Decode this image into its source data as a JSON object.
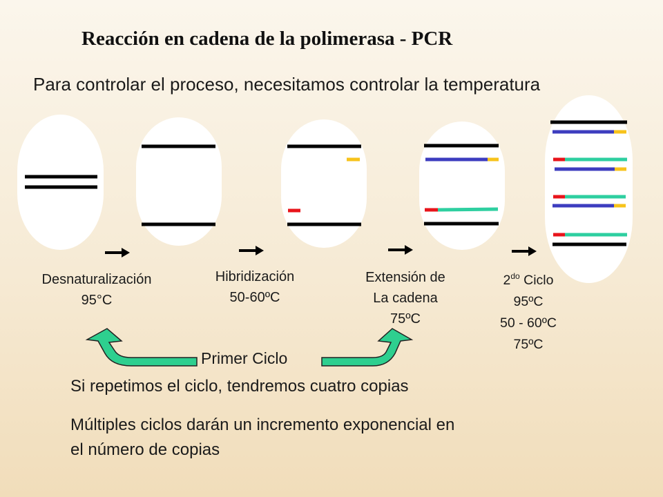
{
  "title": "Reacción en cadena de la polimerasa - PCR",
  "subtitle": "Para controlar el proceso, necesitamos controlar la temperatura",
  "steps": [
    {
      "name": "Desnaturalización",
      "temp": "95°C"
    },
    {
      "name": "Hibridización",
      "temp": "50-60ºC"
    },
    {
      "name_line1": "Extensión de",
      "name_line2": "La cadena",
      "temp": "75ºC"
    }
  ],
  "second_cycle": {
    "number": "2",
    "superscript": "do",
    "label": "Ciclo",
    "temps": [
      "95ºC",
      "50 - 60ºC",
      "75ºC"
    ]
  },
  "first_cycle_label": "Primer Ciclo",
  "repeat_text": "Si repetimos el ciclo, tendremos cuatro copias",
  "multiple_text_line1": "Múltiples ciclos darán un incremento exponencial en",
  "multiple_text_line2": "el número de copias",
  "colors": {
    "dna_strand": "#000000",
    "primer_red": "#e8141b",
    "primer_yellow": "#f7c31b",
    "new_strand_blue": "#3d3dbf",
    "new_strand_teal": "#2ecfa0",
    "curved_arrow_fill": "#2ecf8f",
    "tube_fill": "#ffffff"
  }
}
